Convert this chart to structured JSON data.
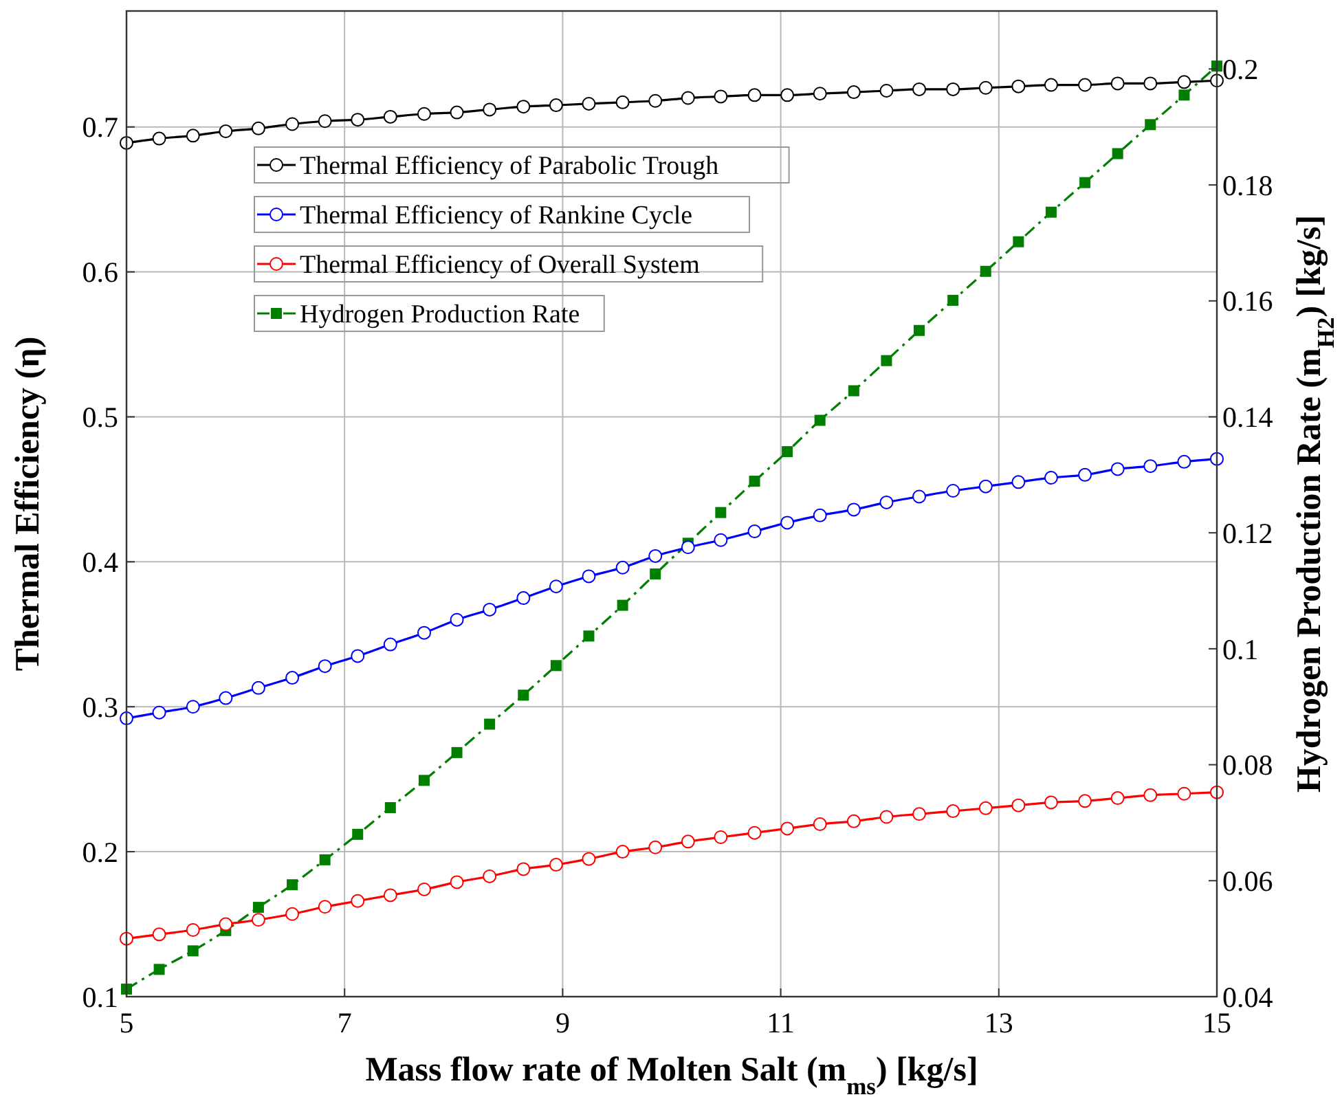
{
  "chart_data": {
    "type": "line",
    "xlabel": "Mass flow rate of Molten Salt (m$_{ms}$) [kg/s]",
    "ylabel": "Thermal Efficiency (η)",
    "y2label": "Hydrogen Production Rate (m$_{H2}$) [kg/s]",
    "x": [
      5,
      5.3,
      5.61,
      5.91,
      6.21,
      6.52,
      6.82,
      7.12,
      7.42,
      7.73,
      8.03,
      8.33,
      8.64,
      8.94,
      9.24,
      9.55,
      9.85,
      10.15,
      10.45,
      10.76,
      11.06,
      11.36,
      11.67,
      11.97,
      12.27,
      12.58,
      12.88,
      13.18,
      13.48,
      13.79,
      14.09,
      14.39,
      14.7,
      15
    ],
    "series": [
      {
        "name": "Thermal Efficiency of Parabolic Trough",
        "color": "#000000",
        "marker": "circle",
        "line_style": "solid",
        "values": [
          0.689,
          0.692,
          0.694,
          0.697,
          0.699,
          0.702,
          0.704,
          0.705,
          0.707,
          0.709,
          0.71,
          0.712,
          0.714,
          0.715,
          0.716,
          0.717,
          0.718,
          0.72,
          0.721,
          0.722,
          0.722,
          0.723,
          0.724,
          0.725,
          0.726,
          0.726,
          0.727,
          0.728,
          0.729,
          0.729,
          0.73,
          0.73,
          0.731,
          0.732
        ]
      },
      {
        "name": "Thermal Efficiency of Rankine Cycle",
        "color": "#0000ff",
        "marker": "circle",
        "line_style": "solid",
        "values": [
          0.292,
          0.296,
          0.3,
          0.306,
          0.313,
          0.32,
          0.328,
          0.335,
          0.343,
          0.351,
          0.36,
          0.367,
          0.375,
          0.383,
          0.39,
          0.396,
          0.404,
          0.41,
          0.415,
          0.421,
          0.427,
          0.432,
          0.436,
          0.441,
          0.445,
          0.449,
          0.452,
          0.455,
          0.458,
          0.46,
          0.464,
          0.466,
          0.469,
          0.471
        ]
      },
      {
        "name": "Thermal Efficiency of Overall System",
        "color": "#ff0000",
        "marker": "circle",
        "line_style": "solid",
        "values": [
          0.14,
          0.143,
          0.146,
          0.15,
          0.153,
          0.157,
          0.162,
          0.166,
          0.17,
          0.174,
          0.179,
          0.183,
          0.188,
          0.191,
          0.195,
          0.2,
          0.203,
          0.207,
          0.21,
          0.213,
          0.216,
          0.219,
          0.221,
          0.224,
          0.226,
          0.228,
          0.23,
          0.232,
          0.234,
          0.235,
          0.237,
          0.239,
          0.24,
          0.241
        ]
      },
      {
        "name": "Hydrogen Production Rate",
        "color": "#007f00",
        "marker": "square",
        "line_style": "dashed",
        "axis": "y2",
        "values": [
          0.0413,
          0.0447,
          0.0479,
          0.0514,
          0.0554,
          0.0593,
          0.0636,
          0.068,
          0.0726,
          0.0773,
          0.0821,
          0.087,
          0.092,
          0.0971,
          0.1022,
          0.1075,
          0.1129,
          0.1182,
          0.1235,
          0.1289,
          0.134,
          0.1394,
          0.1445,
          0.1497,
          0.1549,
          0.1601,
          0.1651,
          0.1702,
          0.1753,
          0.1804,
          0.1854,
          0.1904,
          0.1955,
          0.2005
        ]
      }
    ],
    "xlim": [
      5,
      15
    ],
    "xticks": [
      5,
      7,
      9,
      11,
      13,
      15
    ],
    "ylim": [
      0.1,
      0.78
    ],
    "yticks": [
      0.1,
      0.2,
      0.3,
      0.4,
      0.5,
      0.6,
      0.7
    ],
    "y2lim": [
      0.04,
      0.21
    ],
    "y2ticks": [
      0.04,
      0.06,
      0.08,
      0.1,
      0.12,
      0.14,
      0.16,
      0.18,
      0.2
    ],
    "grid": true,
    "legend": "top left"
  }
}
